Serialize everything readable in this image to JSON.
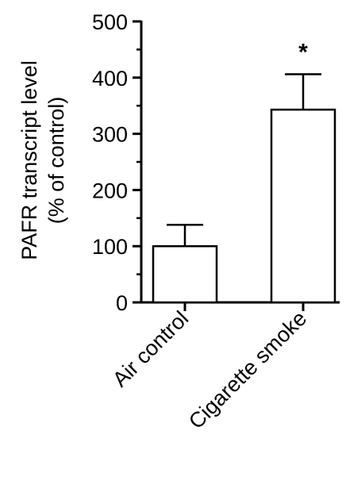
{
  "chart_data": {
    "type": "bar",
    "title": "",
    "xlabel": "",
    "ylabel_lines": [
      "PAFR transcript level",
      "(% of control)"
    ],
    "ylim": [
      0,
      500
    ],
    "yticks": [
      0,
      100,
      200,
      300,
      400,
      500
    ],
    "categories": [
      "Air control",
      "Cigarette smoke"
    ],
    "values": [
      100,
      343
    ],
    "error_upper": [
      138,
      406
    ],
    "annotations": [
      "",
      "*"
    ],
    "bar_fill": "#ffffff",
    "stroke_color": "#000000",
    "grid": false,
    "legend": "none"
  }
}
